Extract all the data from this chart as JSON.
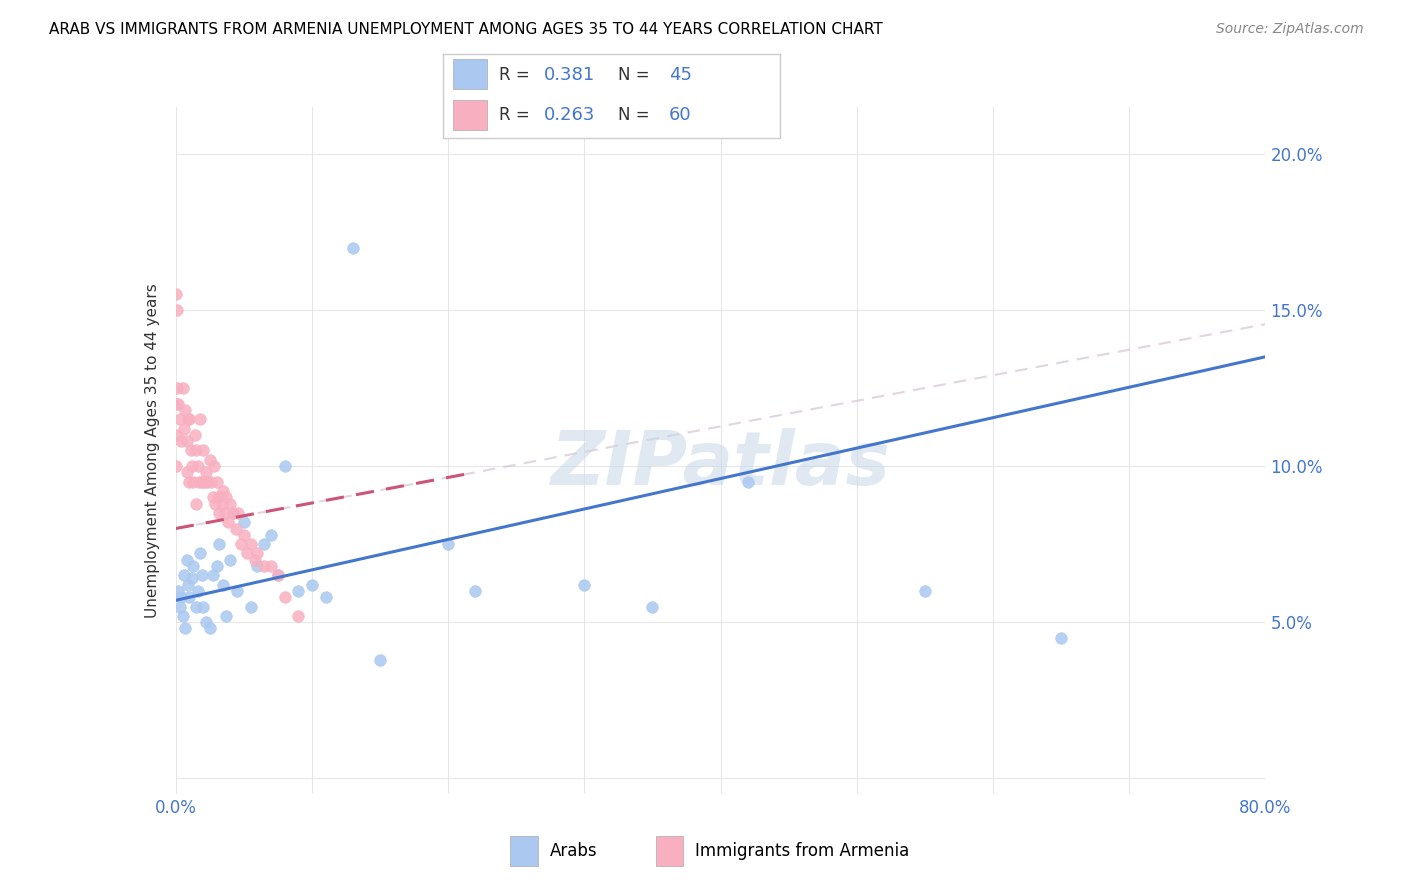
{
  "title": "ARAB VS IMMIGRANTS FROM ARMENIA UNEMPLOYMENT AMONG AGES 35 TO 44 YEARS CORRELATION CHART",
  "source": "Source: ZipAtlas.com",
  "ylabel": "Unemployment Among Ages 35 to 44 years",
  "xlim": [
    0.0,
    0.8
  ],
  "ylim": [
    -0.005,
    0.215
  ],
  "arab_R": 0.381,
  "arab_N": 45,
  "armenia_R": 0.263,
  "armenia_N": 60,
  "arab_color": "#aac8f0",
  "armenia_color": "#f8b0c0",
  "arab_line_color": "#4477cc",
  "armenia_line_color": "#cc5577",
  "watermark": "ZIPatlas",
  "arab_scatter_x": [
    0.002,
    0.003,
    0.004,
    0.005,
    0.006,
    0.007,
    0.008,
    0.009,
    0.01,
    0.012,
    0.013,
    0.015,
    0.016,
    0.018,
    0.019,
    0.02,
    0.022,
    0.025,
    0.027,
    0.03,
    0.032,
    0.035,
    0.037,
    0.04,
    0.042,
    0.045,
    0.05,
    0.055,
    0.06,
    0.065,
    0.07,
    0.075,
    0.08,
    0.09,
    0.1,
    0.11,
    0.13,
    0.15,
    0.2,
    0.22,
    0.3,
    0.35,
    0.42,
    0.55,
    0.65
  ],
  "arab_scatter_y": [
    0.06,
    0.055,
    0.058,
    0.052,
    0.065,
    0.048,
    0.07,
    0.062,
    0.058,
    0.064,
    0.068,
    0.055,
    0.06,
    0.072,
    0.065,
    0.055,
    0.05,
    0.048,
    0.065,
    0.068,
    0.075,
    0.062,
    0.052,
    0.07,
    0.085,
    0.06,
    0.082,
    0.055,
    0.068,
    0.075,
    0.078,
    0.065,
    0.1,
    0.06,
    0.062,
    0.058,
    0.17,
    0.038,
    0.075,
    0.06,
    0.062,
    0.055,
    0.095,
    0.06,
    0.045
  ],
  "armenia_scatter_x": [
    0.0,
    0.0,
    0.0,
    0.001,
    0.001,
    0.002,
    0.003,
    0.004,
    0.005,
    0.006,
    0.007,
    0.008,
    0.008,
    0.009,
    0.01,
    0.01,
    0.011,
    0.012,
    0.013,
    0.014,
    0.015,
    0.015,
    0.016,
    0.017,
    0.018,
    0.019,
    0.02,
    0.021,
    0.022,
    0.023,
    0.025,
    0.026,
    0.027,
    0.028,
    0.029,
    0.03,
    0.031,
    0.032,
    0.033,
    0.034,
    0.035,
    0.036,
    0.037,
    0.038,
    0.04,
    0.042,
    0.044,
    0.046,
    0.048,
    0.05,
    0.052,
    0.055,
    0.058,
    0.06,
    0.065,
    0.07,
    0.075,
    0.08,
    0.09,
    0.001
  ],
  "armenia_scatter_y": [
    0.155,
    0.12,
    0.1,
    0.125,
    0.11,
    0.12,
    0.115,
    0.108,
    0.125,
    0.112,
    0.118,
    0.108,
    0.098,
    0.115,
    0.115,
    0.095,
    0.105,
    0.1,
    0.095,
    0.11,
    0.105,
    0.088,
    0.1,
    0.095,
    0.115,
    0.095,
    0.105,
    0.095,
    0.098,
    0.095,
    0.102,
    0.095,
    0.09,
    0.1,
    0.088,
    0.095,
    0.09,
    0.085,
    0.09,
    0.088,
    0.092,
    0.085,
    0.09,
    0.082,
    0.088,
    0.085,
    0.08,
    0.085,
    0.075,
    0.078,
    0.072,
    0.075,
    0.07,
    0.072,
    0.068,
    0.068,
    0.065,
    0.058,
    0.052,
    0.15
  ],
  "arab_line_x0": 0.0,
  "arab_line_y0": 0.057,
  "arab_line_x1": 0.8,
  "arab_line_y1": 0.135,
  "armenia_line_x0": 0.0,
  "armenia_line_y0": 0.08,
  "armenia_line_x1": 0.22,
  "armenia_line_y1": 0.098
}
